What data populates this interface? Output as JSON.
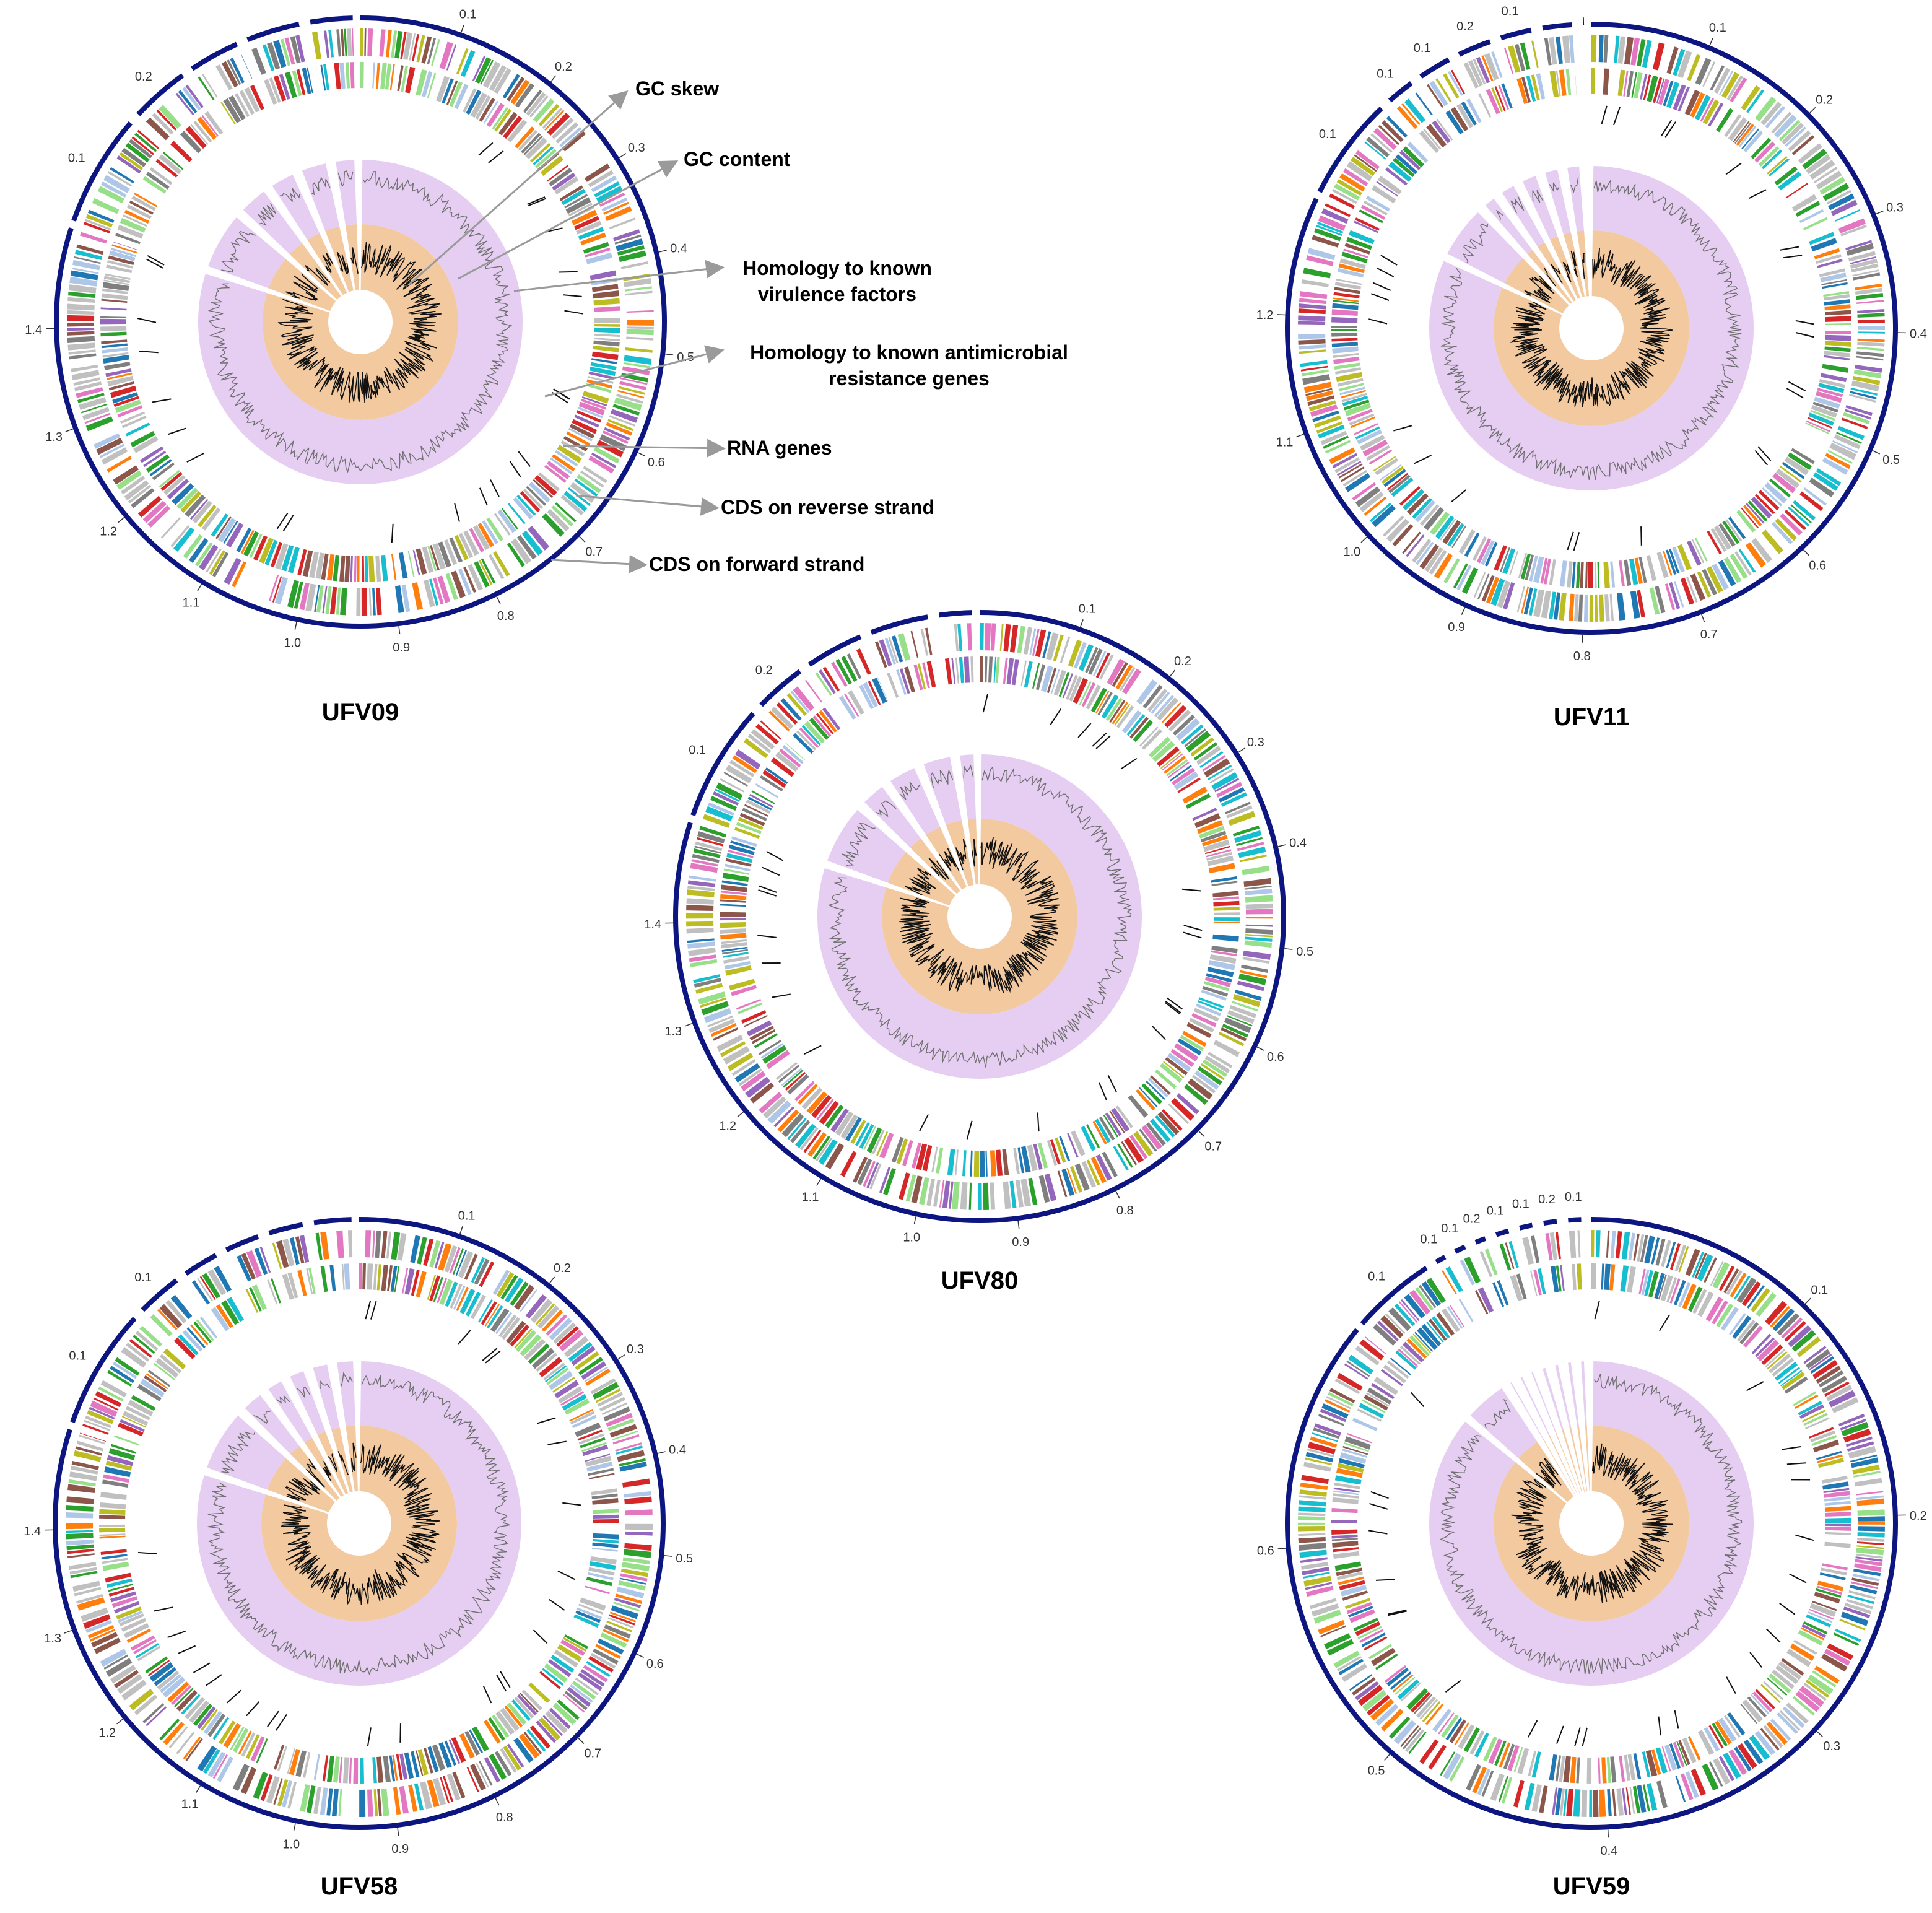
{
  "figure": {
    "description_free": true,
    "colors": {
      "backbone": "#0d1680",
      "gc_content_ring": "#e6cdf2",
      "gc_skew_ring": "#f3caa0",
      "rna": "#111111",
      "arrow": "#9a9a9a",
      "cog_palette": [
        "#c0c0c0",
        "#c0c0c0",
        "#c0c0c0",
        "#1f77b4",
        "#ff7f0e",
        "#2ca02c",
        "#d62728",
        "#9467bd",
        "#8c564b",
        "#e377c2",
        "#7f7f7f",
        "#bcbd22",
        "#17becf",
        "#aec7e8",
        "#98df8a"
      ]
    }
  },
  "genomes": [
    {
      "id": "ufv09",
      "name": "UFV09",
      "contigs": 6,
      "contig_ticks": [
        "0.1",
        "0.2"
      ],
      "main_ticks": [
        "0.1",
        "0.2",
        "0.3",
        "0.4",
        "0.5",
        "0.6",
        "0.7",
        "0.8",
        "0.9",
        "1.0",
        "1.1",
        "1.2",
        "1.3",
        "1.4"
      ]
    },
    {
      "id": "ufv11",
      "name": "UFV11",
      "contigs": 8,
      "contig_ticks": [
        "0.1",
        "0.1",
        "0.1",
        "0.2",
        "0.1"
      ],
      "main_ticks": [
        "0.1",
        "0.2",
        "0.3",
        "0.4",
        "0.5",
        "0.6",
        "0.7",
        "0.8",
        "0.9",
        "1.0",
        "1.1",
        "1.2"
      ]
    },
    {
      "id": "ufv80",
      "name": "UFV80",
      "contigs": 6,
      "contig_ticks": [
        "0.1",
        "0.2"
      ],
      "main_ticks": [
        "0.1",
        "0.2",
        "0.3",
        "0.4",
        "0.5",
        "0.6",
        "0.7",
        "0.8",
        "0.9",
        "1.0",
        "1.1",
        "1.2",
        "1.3",
        "1.4"
      ]
    },
    {
      "id": "ufv58",
      "name": "UFV58",
      "contigs": 7,
      "contig_ticks": [
        "0.1",
        "0.1"
      ],
      "main_ticks": [
        "0.1",
        "0.2",
        "0.3",
        "0.4",
        "0.5",
        "0.6",
        "0.7",
        "0.8",
        "0.9",
        "1.0",
        "1.1",
        "1.2",
        "1.3",
        "1.4"
      ]
    },
    {
      "id": "ufv59",
      "name": "UFV59",
      "contigs": 14,
      "contig_ticks": [
        "0.1",
        "0.1",
        "0.1",
        "0.2",
        "0.1",
        "0.1",
        "0.2",
        "0.1"
      ],
      "main_ticks": [
        "0.1",
        "0.2",
        "0.3",
        "0.4",
        "0.5",
        "0.6"
      ]
    }
  ],
  "legend": {
    "gc_skew": "GC skew",
    "gc_content": "GC content",
    "virulence_line1": "Homology to known",
    "virulence_line2": "virulence factors",
    "amr_line1": "Homology to known antimicrobial",
    "amr_line2": "resistance genes",
    "rna": "RNA genes",
    "cds_reverse": "CDS on reverse strand",
    "cds_forward": "CDS on forward strand"
  }
}
